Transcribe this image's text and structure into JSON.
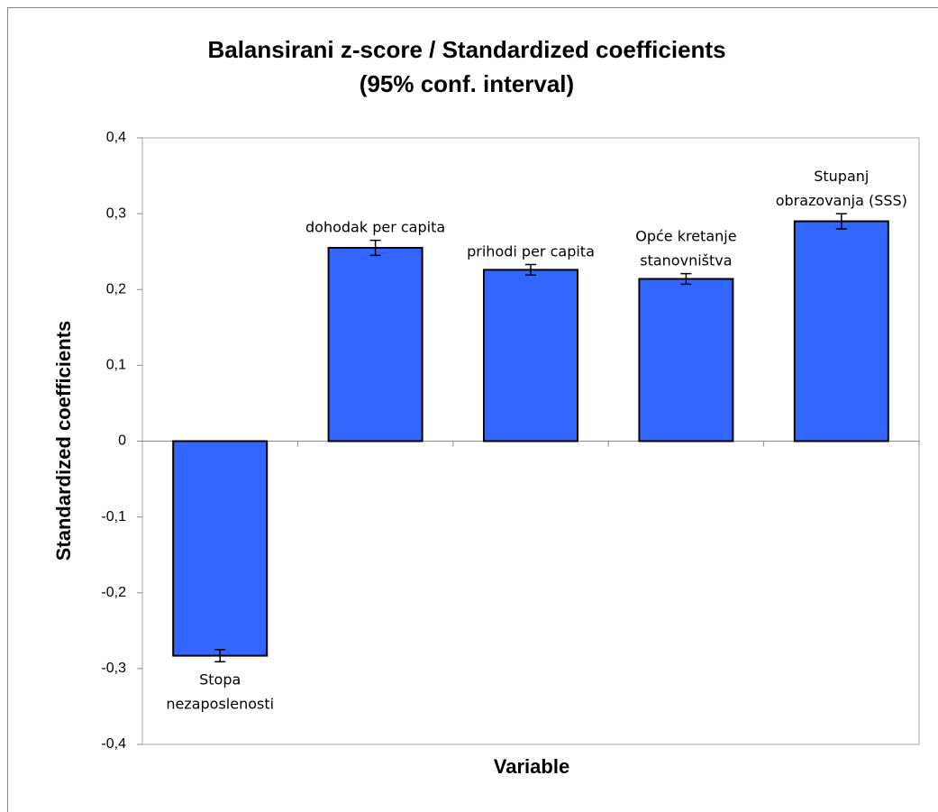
{
  "chart_data": {
    "type": "bar",
    "title": "Balansirani z-score / Standardized coefficients",
    "subtitle": "(95% conf. interval)",
    "x_label": "Variable",
    "y_label": "Standardized coefficients",
    "categories": [
      "Stopa nezaposlenosti",
      "dohodak per capita",
      "prihodi per capita",
      "Opće kretanje stanovništva",
      "Stupanj obrazovanja (SSS)"
    ],
    "values": [
      -0.283,
      0.255,
      0.226,
      0.214,
      0.29
    ],
    "errors": [
      0.008,
      0.01,
      0.007,
      0.007,
      0.01
    ],
    "color": "#3366ff",
    "ylim": [
      -0.4,
      0.4
    ],
    "yticks": [
      {
        "value": -0.4,
        "label": "-0,4"
      },
      {
        "value": -0.3,
        "label": "-0,3"
      },
      {
        "value": -0.2,
        "label": "-0,2"
      },
      {
        "value": -0.1,
        "label": "-0,1"
      },
      0,
      {
        "value": 0.1,
        "label": "0,1"
      },
      {
        "value": 0.2,
        "label": "0,2"
      },
      {
        "value": 0.3,
        "label": "0,3"
      },
      {
        "value": 0.4,
        "label": "0,4"
      }
    ]
  }
}
